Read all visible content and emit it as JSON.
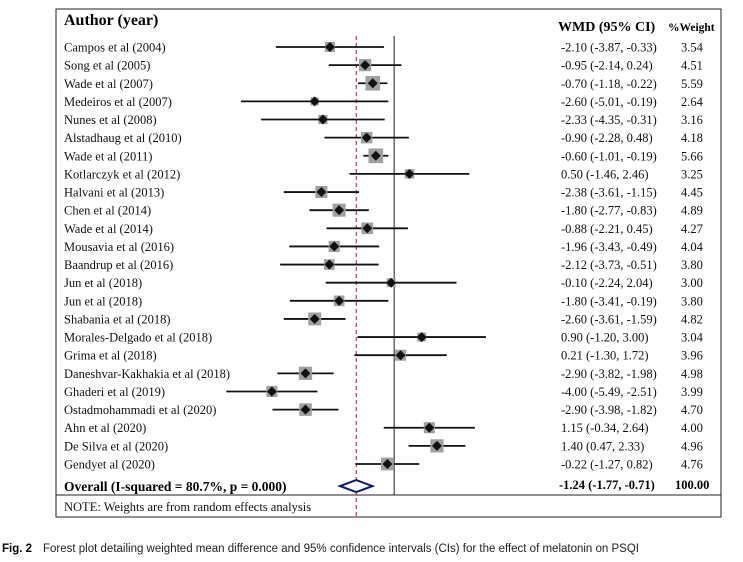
{
  "caption": {
    "prefix": "Fig. 2",
    "text": "Forest plot detailing weighted mean difference and 95% confidence intervals (CIs) for the effect of melatonin on PSQI"
  },
  "chart_data": {
    "type": "forest",
    "headers": {
      "study": "Author (year)",
      "effect": "WMD (95% CI)",
      "weight": "%Weight"
    },
    "xlim": [
      -5.5,
      3.2
    ],
    "null_line": 0,
    "studies": [
      {
        "label": "Campos et al (2004)",
        "wmd": -2.1,
        "lo": -3.87,
        "hi": -0.33,
        "ci_text": "-2.10 (-3.87, -0.33)",
        "weight": 3.54,
        "weight_text": "3.54"
      },
      {
        "label": "Song et al (2005)",
        "wmd": -0.95,
        "lo": -2.14,
        "hi": 0.24,
        "ci_text": "-0.95 (-2.14, 0.24)",
        "weight": 4.51,
        "weight_text": "4.51"
      },
      {
        "label": "Wade et al (2007)",
        "wmd": -0.7,
        "lo": -1.18,
        "hi": -0.22,
        "ci_text": "-0.70 (-1.18, -0.22)",
        "weight": 5.59,
        "weight_text": "5.59"
      },
      {
        "label": "Medeiros et al (2007)",
        "wmd": -2.6,
        "lo": -5.01,
        "hi": -0.19,
        "ci_text": "-2.60 (-5.01, -0.19)",
        "weight": 2.64,
        "weight_text": "2.64"
      },
      {
        "label": "Nunes et al (2008)",
        "wmd": -2.33,
        "lo": -4.35,
        "hi": -0.31,
        "ci_text": "-2.33 (-4.35, -0.31)",
        "weight": 3.16,
        "weight_text": "3.16"
      },
      {
        "label": "Alstadhaug et al (2010)",
        "wmd": -0.9,
        "lo": -2.28,
        "hi": 0.48,
        "ci_text": "-0.90 (-2.28, 0.48)",
        "weight": 4.18,
        "weight_text": "4.18"
      },
      {
        "label": "Wade et al (2011)",
        "wmd": -0.6,
        "lo": -1.01,
        "hi": -0.19,
        "ci_text": "-0.60 (-1.01, -0.19)",
        "weight": 5.66,
        "weight_text": "5.66"
      },
      {
        "label": "Kotlarczyk et al (2012)",
        "wmd": 0.5,
        "lo": -1.46,
        "hi": 2.46,
        "ci_text": "0.50 (-1.46, 2.46)",
        "weight": 3.25,
        "weight_text": "3.25"
      },
      {
        "label": "Halvani et al (2013)",
        "wmd": -2.38,
        "lo": -3.61,
        "hi": -1.15,
        "ci_text": "-2.38 (-3.61, -1.15)",
        "weight": 4.45,
        "weight_text": "4.45"
      },
      {
        "label": "Chen et al (2014)",
        "wmd": -1.8,
        "lo": -2.77,
        "hi": -0.83,
        "ci_text": "-1.80 (-2.77, -0.83)",
        "weight": 4.89,
        "weight_text": "4.89"
      },
      {
        "label": "Wade et al (2014)",
        "wmd": -0.88,
        "lo": -2.21,
        "hi": 0.45,
        "ci_text": "-0.88 (-2.21, 0.45)",
        "weight": 4.27,
        "weight_text": "4.27"
      },
      {
        "label": "Mousavia et al (2016)",
        "wmd": -1.96,
        "lo": -3.43,
        "hi": -0.49,
        "ci_text": "-1.96 (-3.43, -0.49)",
        "weight": 4.04,
        "weight_text": "4.04"
      },
      {
        "label": "Baandrup et al (2016)",
        "wmd": -2.12,
        "lo": -3.73,
        "hi": -0.51,
        "ci_text": "-2.12 (-3.73, -0.51)",
        "weight": 3.8,
        "weight_text": "3.80"
      },
      {
        "label": "Jun et al (2018)",
        "wmd": -0.1,
        "lo": -2.24,
        "hi": 2.04,
        "ci_text": "-0.10 (-2.24, 2.04)",
        "weight": 3.0,
        "weight_text": "3.00"
      },
      {
        "label": "Jun et al (2018)",
        "wmd": -1.8,
        "lo": -3.41,
        "hi": -0.19,
        "ci_text": "-1.80 (-3.41, -0.19)",
        "weight": 3.8,
        "weight_text": "3.80"
      },
      {
        "label": "Shabania et al (2018)",
        "wmd": -2.6,
        "lo": -3.61,
        "hi": -1.59,
        "ci_text": "-2.60 (-3.61, -1.59)",
        "weight": 4.82,
        "weight_text": "4.82"
      },
      {
        "label": "Morales-Delgado et al (2018)",
        "wmd": 0.9,
        "lo": -1.2,
        "hi": 3.0,
        "ci_text": "0.90 (-1.20, 3.00)",
        "weight": 3.04,
        "weight_text": "3.04"
      },
      {
        "label": "Grima et al (2018)",
        "wmd": 0.21,
        "lo": -1.3,
        "hi": 1.72,
        "ci_text": "0.21 (-1.30, 1.72)",
        "weight": 3.96,
        "weight_text": "3.96"
      },
      {
        "label": "Daneshvar-Kakhakia et al (2018)",
        "wmd": -2.9,
        "lo": -3.82,
        "hi": -1.98,
        "ci_text": "-2.90 (-3.82, -1.98)",
        "weight": 4.98,
        "weight_text": "4.98"
      },
      {
        "label": "Ghaderi et al (2019)",
        "wmd": -4.0,
        "lo": -5.49,
        "hi": -2.51,
        "ci_text": "-4.00 (-5.49, -2.51)",
        "weight": 3.99,
        "weight_text": "3.99"
      },
      {
        "label": "Ostadmohammadi et al (2020)",
        "wmd": -2.9,
        "lo": -3.98,
        "hi": -1.82,
        "ci_text": "-2.90 (-3.98, -1.82)",
        "weight": 4.7,
        "weight_text": "4.70"
      },
      {
        "label": "Ahn et al (2020)",
        "wmd": 1.15,
        "lo": -0.34,
        "hi": 2.64,
        "ci_text": "1.15 (-0.34, 2.64)",
        "weight": 4.0,
        "weight_text": "4.00"
      },
      {
        "label": "De Silva et al (2020)",
        "wmd": 1.4,
        "lo": 0.47,
        "hi": 2.33,
        "ci_text": "1.40 (0.47, 2.33)",
        "weight": 4.96,
        "weight_text": "4.96"
      },
      {
        "label": "Gendyet al (2020)",
        "wmd": -0.22,
        "lo": -1.27,
        "hi": 0.82,
        "ci_text": "-0.22 (-1.27, 0.82)",
        "weight": 4.76,
        "weight_text": "4.76"
      }
    ],
    "overall": {
      "label": "Overall (I-squared = 80.7%, p = 0.000)",
      "wmd": -1.24,
      "lo": -1.77,
      "hi": -0.71,
      "ci_text": "-1.24 (-1.77, -0.71)",
      "weight_text": "100.00"
    },
    "note": "NOTE: Weights are from random effects analysis",
    "colors": {
      "marker": "#111111",
      "weight_box": "#a0a0a0",
      "overall_diamond": "#0a1a6e",
      "overall_line": "#8a2040",
      "frame": "#222222"
    }
  }
}
